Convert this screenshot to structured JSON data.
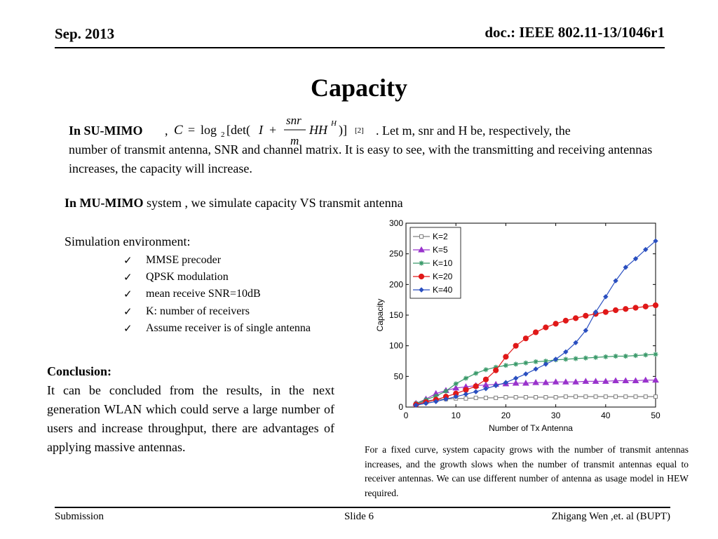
{
  "header": {
    "date": "Sep. 2013",
    "doc_id": "doc.: IEEE 802.11-13/1046r1"
  },
  "title": "Capacity",
  "su_mimo": {
    "label": "In SU-MIMO",
    "comma": ",",
    "formula": {
      "lhs": "C",
      "eq": "=",
      "log": "log",
      "log_base": "2",
      "det_open": "[det(",
      "identity": "I",
      "plus": "+",
      "frac_num": "snr",
      "frac_den": "m",
      "hh": "HH",
      "sup_h": "H",
      "close": ")]",
      "ref": "[2]"
    },
    "line1_rest": ".  Let m, snr and H be, respectively, the",
    "paragraph": "number of transmit antenna, SNR and channel matrix. It is easy to see, with the transmitting and receiving antennas increases, the capacity will increase."
  },
  "mu_mimo": {
    "label": "In MU-MIMO",
    "text": " system , we simulate  capacity VS transmit antenna"
  },
  "simulation": {
    "heading": "Simulation environment:",
    "check_glyph": "✓",
    "items": [
      "MMSE precoder",
      "QPSK modulation",
      "mean receive SNR=10dB",
      "K: number of receivers",
      "Assume receiver is of single antenna"
    ]
  },
  "conclusion": {
    "title": "Conclusion:",
    "text": "It can be concluded from the results, in the next generation WLAN which could serve a large number of users and increase throughput, there are advantages of applying massive antennas."
  },
  "caption": "For a fixed curve, system capacity  grows with the number of transmit antennas increases, and the growth slows when the number of transmit antennas equal to receiver antennas. We can use different number of antenna  as usage model in HEW required.",
  "footer": {
    "left": "Submission",
    "center": "Slide 6",
    "right": "Zhigang Wen ,et. al (BUPT)"
  },
  "chart_data": {
    "type": "line",
    "title": "",
    "xlabel": "Number of Tx Antenna",
    "ylabel": "Capacity",
    "xlim": [
      0,
      50
    ],
    "ylim": [
      0,
      300
    ],
    "xticks": [
      0,
      10,
      20,
      30,
      40,
      50
    ],
    "yticks": [
      0,
      50,
      100,
      150,
      200,
      250,
      300
    ],
    "grid": false,
    "legend_position": "top-left",
    "x": [
      2,
      4,
      6,
      8,
      10,
      12,
      14,
      16,
      18,
      20,
      22,
      24,
      26,
      28,
      30,
      32,
      34,
      36,
      38,
      40,
      42,
      44,
      46,
      48,
      50
    ],
    "series": [
      {
        "name": "K=2",
        "color": "#808080",
        "marker": "square",
        "values": [
          5,
          10,
          12,
          13,
          14,
          14,
          15,
          15,
          15,
          16,
          16,
          16,
          16,
          16,
          16,
          17,
          17,
          17,
          17,
          17,
          17,
          17,
          17,
          17,
          17
        ]
      },
      {
        "name": "K=5",
        "color": "#9933cc",
        "marker": "triangle",
        "values": [
          6,
          13,
          22,
          27,
          31,
          33,
          35,
          36,
          37,
          38,
          39,
          39,
          40,
          40,
          41,
          41,
          41,
          42,
          42,
          42,
          43,
          43,
          43,
          44,
          44
        ]
      },
      {
        "name": "K=10",
        "color": "#3a9a6a",
        "marker": "star",
        "values": [
          6,
          12,
          18,
          26,
          38,
          47,
          55,
          61,
          65,
          68,
          70,
          72,
          74,
          75,
          77,
          78,
          79,
          80,
          81,
          82,
          83,
          83,
          84,
          85,
          86
        ]
      },
      {
        "name": "K=20",
        "color": "#e01818",
        "marker": "circle",
        "values": [
          4,
          8,
          12,
          17,
          22,
          28,
          34,
          45,
          60,
          82,
          100,
          112,
          122,
          130,
          136,
          141,
          145,
          149,
          152,
          155,
          158,
          160,
          162,
          164,
          166
        ]
      },
      {
        "name": "K=40",
        "color": "#2a4fc0",
        "marker": "diamond",
        "values": [
          3,
          6,
          9,
          13,
          17,
          21,
          25,
          30,
          35,
          40,
          47,
          54,
          62,
          70,
          78,
          90,
          105,
          125,
          155,
          180,
          206,
          228,
          242,
          257,
          271
        ]
      }
    ]
  }
}
